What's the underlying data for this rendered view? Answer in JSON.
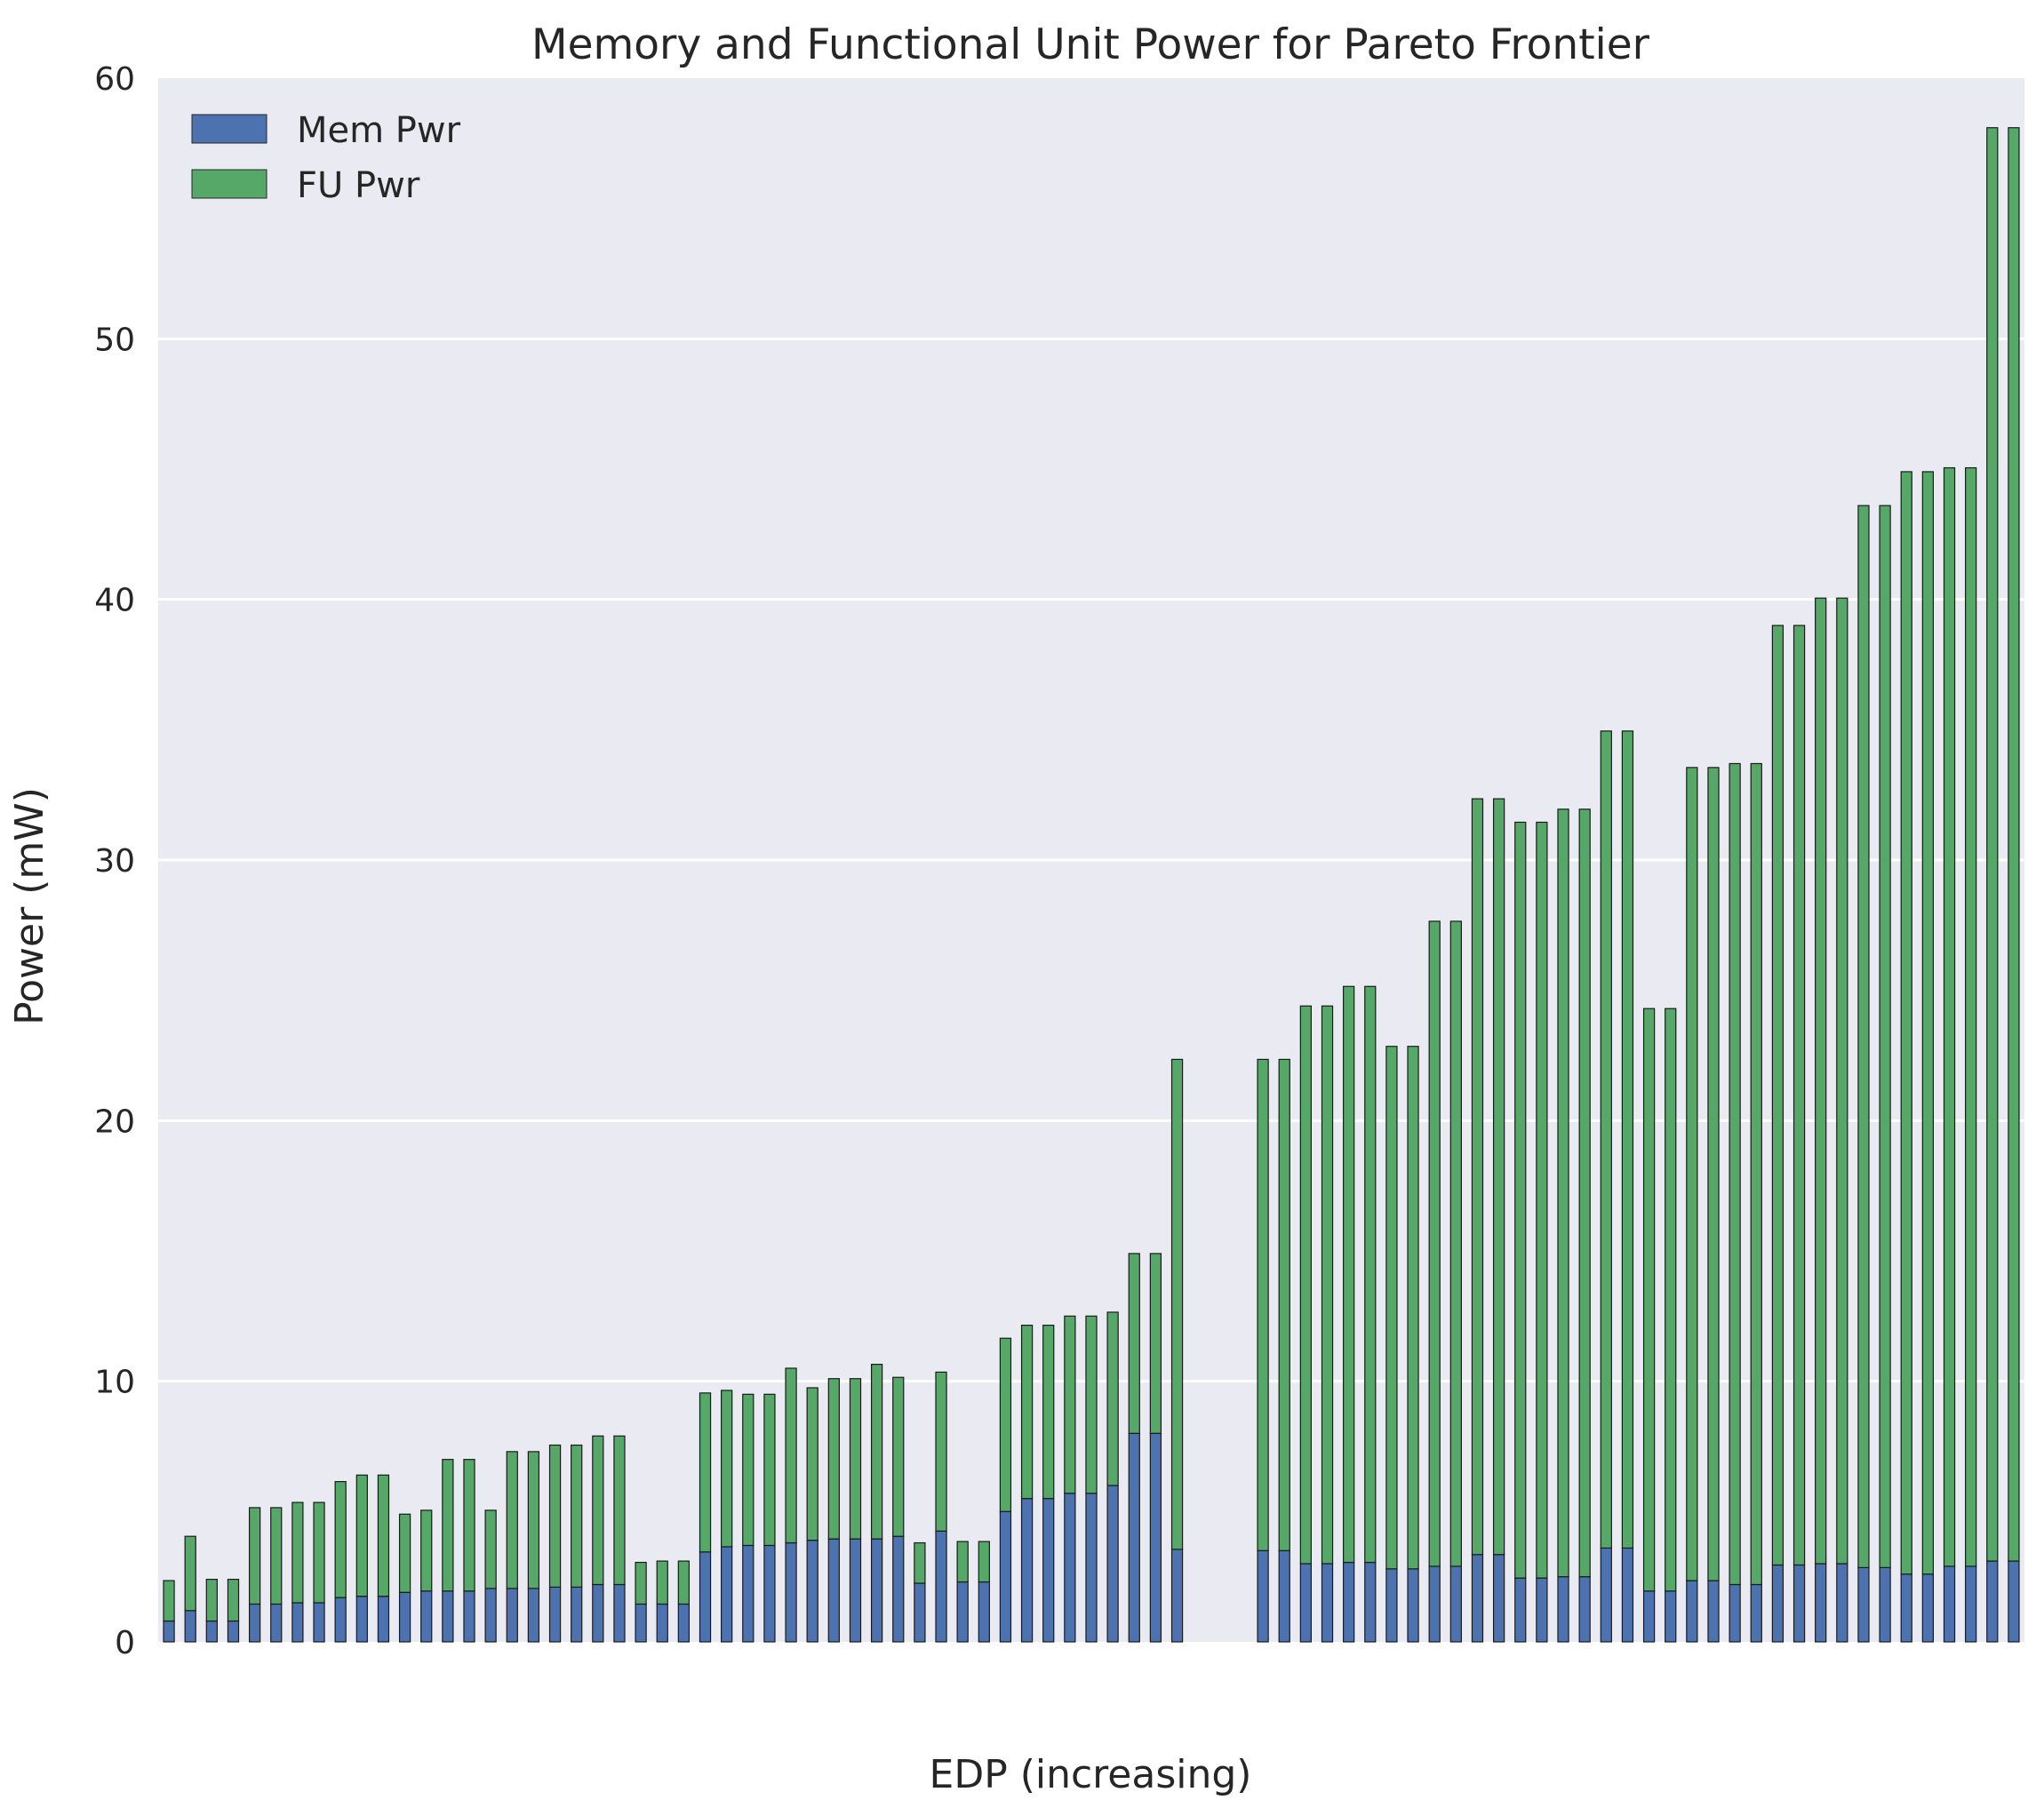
{
  "chart_data": {
    "type": "bar",
    "stacked": true,
    "title": "Memory and Functional Unit Power for Pareto Frontier",
    "xlabel": "EDP (increasing)",
    "ylabel": "Power (mW)",
    "ylim": [
      0,
      60
    ],
    "yticks": [
      0,
      10,
      20,
      30,
      40,
      50,
      60
    ],
    "grid": true,
    "legend_position": "top-left",
    "background": "#eaeaf2",
    "series": [
      {
        "name": "Mem Pwr",
        "color": "#4c72b0",
        "values": [
          0.8,
          1.2,
          0.8,
          0.8,
          1.45,
          1.45,
          1.5,
          1.5,
          1.7,
          1.75,
          1.75,
          1.9,
          1.95,
          1.95,
          1.95,
          2.05,
          2.05,
          2.05,
          2.1,
          2.1,
          2.2,
          2.2,
          1.45,
          1.45,
          1.45,
          3.45,
          3.65,
          3.7,
          3.7,
          3.8,
          3.9,
          3.95,
          3.95,
          3.95,
          4.05,
          2.25,
          4.25,
          2.3,
          2.3,
          5.0,
          5.5,
          5.5,
          5.7,
          5.7,
          6.0,
          8.0,
          8.0,
          3.55,
          0,
          0,
          0,
          3.5,
          3.5,
          3.0,
          3.0,
          3.05,
          3.05,
          2.8,
          2.8,
          2.9,
          2.9,
          3.35,
          3.35,
          2.45,
          2.45,
          2.5,
          2.5,
          3.6,
          3.6,
          1.95,
          1.95,
          2.35,
          2.35,
          2.2,
          2.2,
          2.95,
          2.95,
          3.0,
          3.0,
          2.85,
          2.85,
          2.6,
          2.6,
          2.9,
          2.9,
          3.1,
          3.1
        ]
      },
      {
        "name": "FU Pwr",
        "color": "#55a868",
        "values": [
          1.55,
          2.85,
          1.6,
          1.6,
          3.7,
          3.7,
          3.85,
          3.85,
          4.45,
          4.65,
          4.65,
          3.0,
          3.1,
          5.05,
          5.05,
          3.0,
          5.25,
          5.25,
          5.45,
          5.45,
          5.7,
          5.7,
          1.6,
          1.65,
          1.65,
          6.1,
          6.0,
          5.8,
          5.8,
          6.7,
          5.85,
          6.15,
          6.15,
          6.7,
          6.1,
          1.55,
          6.1,
          1.55,
          1.55,
          6.65,
          6.65,
          6.65,
          6.8,
          6.8,
          6.65,
          6.9,
          6.9,
          18.8,
          0,
          0,
          0,
          18.85,
          18.85,
          21.4,
          21.4,
          22.1,
          22.1,
          20.05,
          20.05,
          24.75,
          24.75,
          29.0,
          29.0,
          29.0,
          29.0,
          29.45,
          29.45,
          31.35,
          31.35,
          22.35,
          22.35,
          31.2,
          31.2,
          31.5,
          31.5,
          36.05,
          36.05,
          37.05,
          37.05,
          40.75,
          40.75,
          42.3,
          42.3,
          42.15,
          42.15,
          55.0,
          55.0
        ]
      }
    ]
  }
}
